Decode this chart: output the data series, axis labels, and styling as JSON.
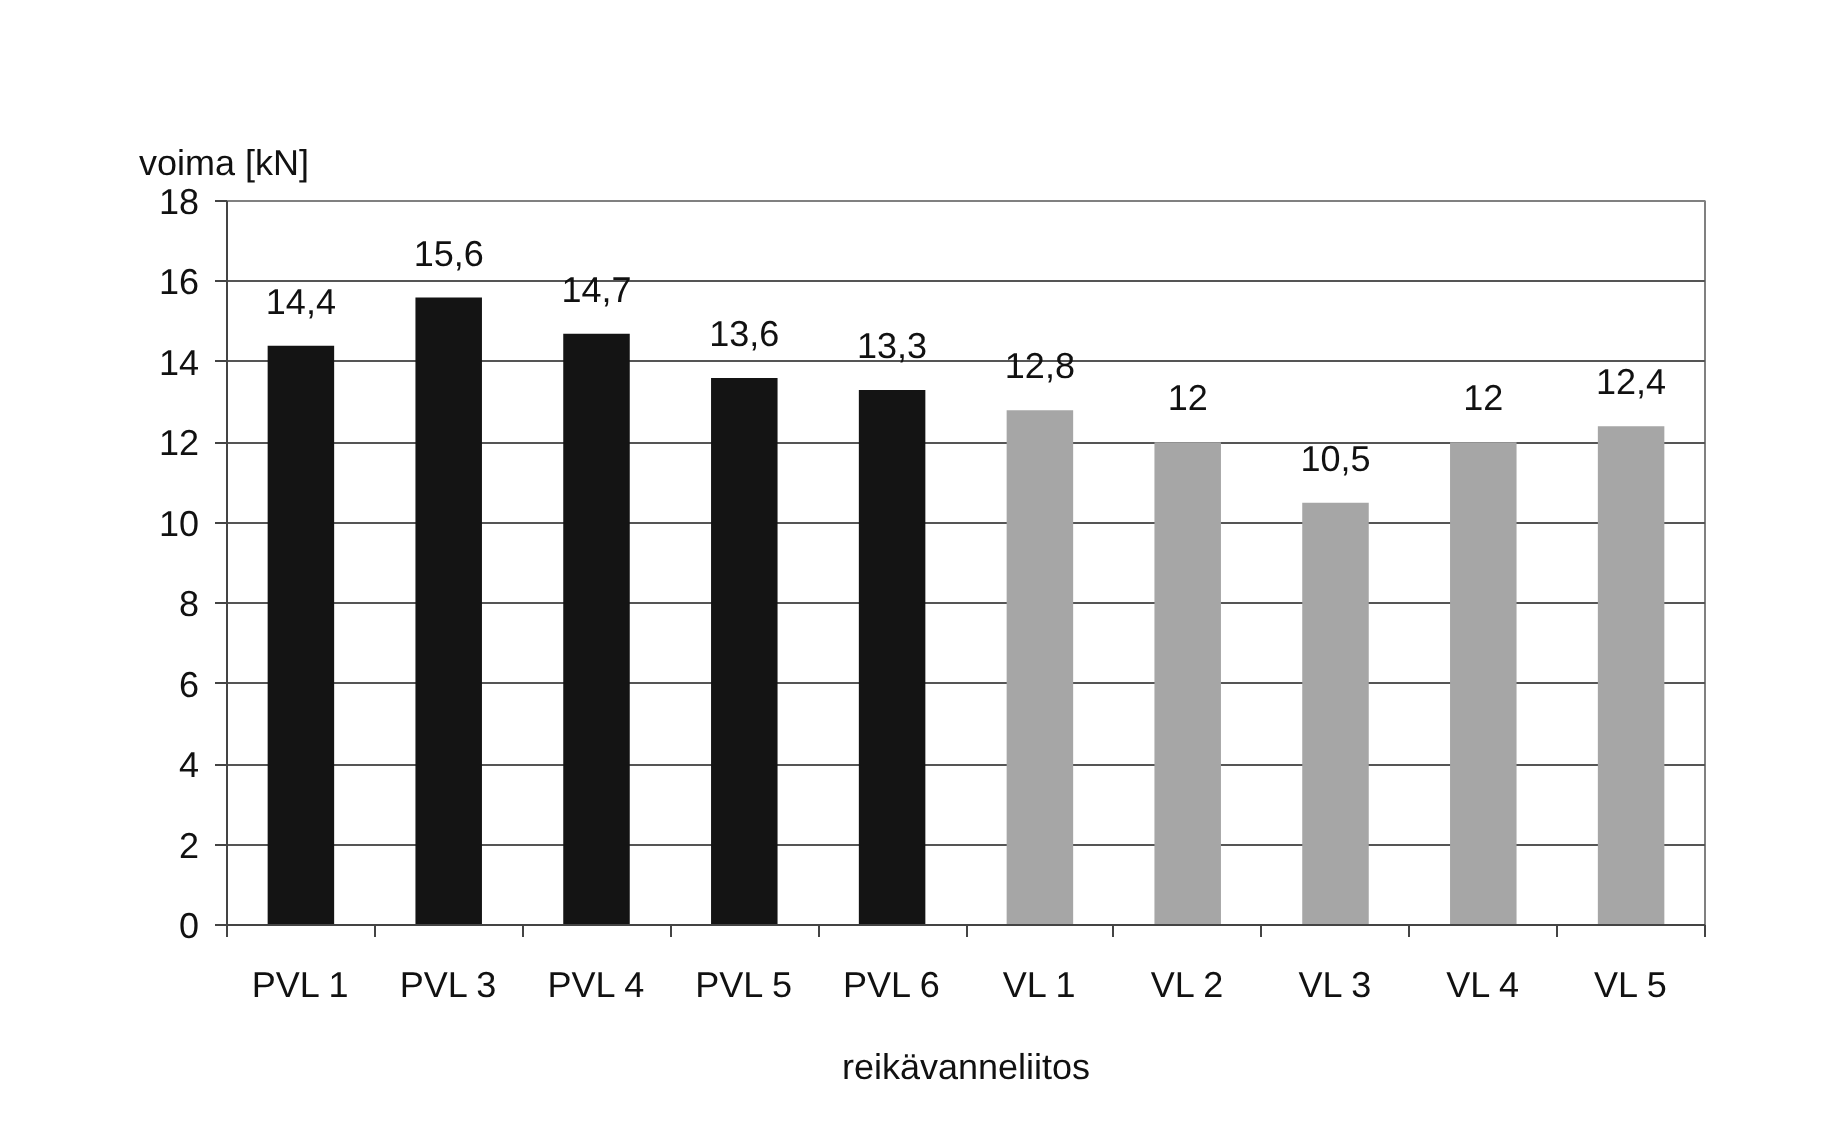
{
  "chart_data": {
    "type": "bar",
    "xlabel": "reikävanneliitos",
    "ylabel": "voima [kN]",
    "categories": [
      "PVL 1",
      "PVL 3",
      "PVL 4",
      "PVL 5",
      "PVL 6",
      "VL 1",
      "VL 2",
      "VL 3",
      "VL 4",
      "VL 5"
    ],
    "values": [
      14.4,
      15.6,
      14.7,
      13.6,
      13.3,
      12.8,
      12,
      10.5,
      12,
      12.4
    ],
    "colors": [
      "#141414",
      "#141414",
      "#141414",
      "#141414",
      "#141414",
      "#a6a6a6",
      "#a6a6a6",
      "#a6a6a6",
      "#a6a6a6",
      "#a6a6a6"
    ],
    "value_labels": [
      "14,4",
      "15,6",
      "14,7",
      "13,6",
      "13,3",
      "12,8",
      "12",
      "10,5",
      "12",
      "12,4"
    ],
    "ylim": [
      0,
      18
    ],
    "yticks": [
      0,
      2,
      4,
      6,
      8,
      10,
      12,
      14,
      16,
      18
    ],
    "grid": "y"
  }
}
